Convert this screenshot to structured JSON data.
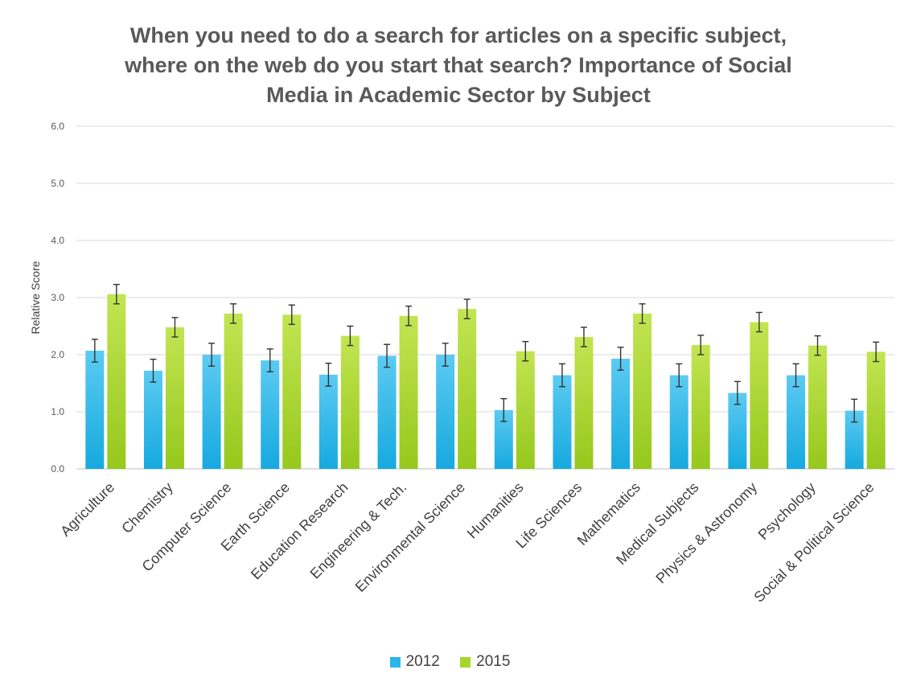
{
  "chart_data": {
    "type": "bar",
    "title": [
      "When you need to do a search for articles on a specific subject,",
      "where on the web do you start that search? Importance of Social",
      "Media in Academic Sector by Subject"
    ],
    "xlabel": "",
    "ylabel": "Relative Score",
    "ylim": [
      0,
      6
    ],
    "yticks": [
      "0.0",
      "1.0",
      "2.0",
      "3.0",
      "4.0",
      "5.0",
      "6.0"
    ],
    "grid": true,
    "legend_position": "bottom",
    "error_bars": true,
    "categories": [
      "Agriculture",
      "Chemistry",
      "Computer Science",
      "Earth Science",
      "Education Research",
      "Engineering & Tech.",
      "Environmental Science",
      "Humanities",
      "Life Sciences",
      "Mathematics",
      "Medical Subjects",
      "Physics & Astronomy",
      "Psychology",
      "Social & Political Science"
    ],
    "series": [
      {
        "name": "2012",
        "color": "#29b6e8",
        "values": [
          2.07,
          1.72,
          2.0,
          1.9,
          1.65,
          1.98,
          2.0,
          1.03,
          1.64,
          1.93,
          1.64,
          1.33,
          1.64,
          1.02
        ],
        "errors": [
          0.2,
          0.2,
          0.2,
          0.2,
          0.2,
          0.2,
          0.2,
          0.2,
          0.2,
          0.2,
          0.2,
          0.2,
          0.2,
          0.2
        ]
      },
      {
        "name": "2015",
        "color": "#a6d62a",
        "values": [
          3.06,
          2.48,
          2.72,
          2.7,
          2.33,
          2.68,
          2.8,
          2.06,
          2.31,
          2.72,
          2.17,
          2.57,
          2.16,
          2.05
        ],
        "errors": [
          0.17,
          0.17,
          0.17,
          0.17,
          0.17,
          0.17,
          0.17,
          0.17,
          0.17,
          0.17,
          0.17,
          0.17,
          0.17,
          0.17
        ]
      }
    ]
  }
}
